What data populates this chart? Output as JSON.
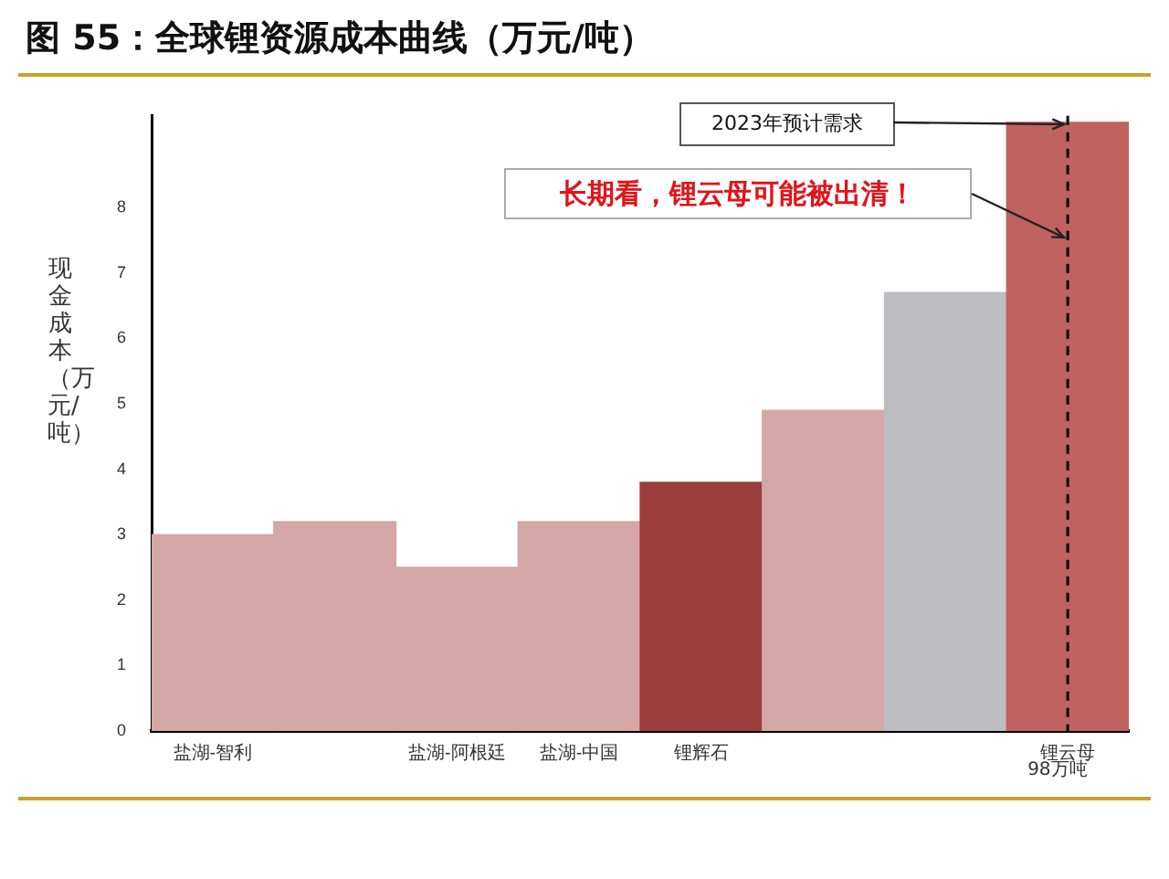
{
  "chart_data": {
    "type": "bar",
    "title": "图 55：全球锂资源成本曲线（万元/吨）",
    "ylabel": "现金成本（万元/吨）",
    "categories": [
      "盐湖-智利",
      null,
      "盐湖-阿根廷",
      "盐湖-中国",
      "锂辉石",
      null,
      null,
      "锂云母"
    ],
    "values": [
      3.0,
      3.2,
      2.5,
      3.2,
      3.8,
      4.9,
      6.7,
      9.3
    ],
    "colors": [
      "#d4a6a5",
      "#d4a6a5",
      "#d4a6a5",
      "#d4a6a5",
      "#9b3d3a",
      "#d4a6a5",
      "#bdbdc1",
      "#bf6260"
    ],
    "ylim": [
      0,
      9.4
    ],
    "yticks": [
      0,
      1,
      2,
      3,
      4,
      5,
      6,
      7,
      8
    ],
    "grid": false,
    "legend": false,
    "ref_lines": [
      {
        "axis": "x",
        "value": "锂云母",
        "label": "2023年预计需求",
        "color": "#000000",
        "line_style": "dashed"
      }
    ],
    "annotations": [
      "长期看，锂云母可能被出清！",
      "98万吨"
    ]
  }
}
